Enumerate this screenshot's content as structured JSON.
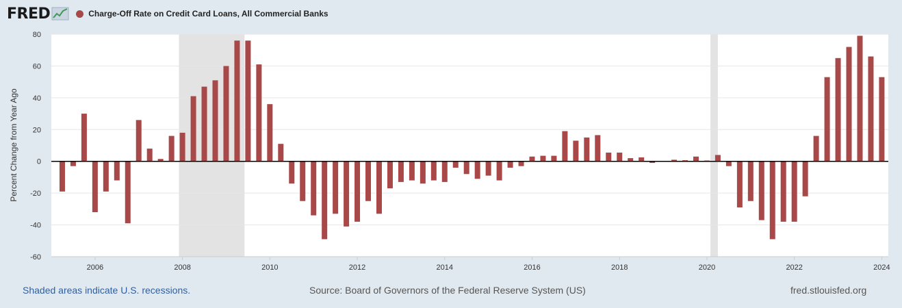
{
  "header": {
    "logo_text": "FRED",
    "logo_icon": "fred-chart-icon",
    "series_title": "Charge-Off Rate on Credit Card Loans, All Commercial Banks"
  },
  "footer": {
    "recession_note": "Shaded areas indicate U.S. recessions.",
    "source": "Source: Board of Governors of the Federal Reserve System (US)",
    "site": "fred.stlouisfed.org"
  },
  "colors": {
    "bar": "#a94848",
    "recession": "#e3e3e3",
    "background": "#e1e9f0",
    "plot": "#ffffff"
  },
  "chart_data": {
    "type": "bar",
    "title": "Charge-Off Rate on Credit Card Loans, All Commercial Banks",
    "xlabel": "",
    "ylabel": "Percent Change from Year Ago",
    "ylim": [
      -60,
      80
    ],
    "yticks": [
      80,
      60,
      40,
      20,
      0,
      -20,
      -40,
      -60
    ],
    "xlim": [
      2005.0,
      2024.15
    ],
    "xticks": [
      "2006",
      "2008",
      "2010",
      "2012",
      "2014",
      "2016",
      "2018",
      "2020",
      "2022",
      "2024"
    ],
    "recessions": [
      [
        2007.92,
        2009.42
      ],
      [
        2020.08,
        2020.25
      ]
    ],
    "grid": true,
    "series": [
      {
        "name": "Charge-Off Rate on Credit Card Loans, All Commercial Banks",
        "x": [
          2005.25,
          2005.5,
          2005.75,
          2006.0,
          2006.25,
          2006.5,
          2006.75,
          2007.0,
          2007.25,
          2007.5,
          2007.75,
          2008.0,
          2008.25,
          2008.5,
          2008.75,
          2009.0,
          2009.25,
          2009.5,
          2009.75,
          2010.0,
          2010.25,
          2010.5,
          2010.75,
          2011.0,
          2011.25,
          2011.5,
          2011.75,
          2012.0,
          2012.25,
          2012.5,
          2012.75,
          2013.0,
          2013.25,
          2013.5,
          2013.75,
          2014.0,
          2014.25,
          2014.5,
          2014.75,
          2015.0,
          2015.25,
          2015.5,
          2015.75,
          2016.0,
          2016.25,
          2016.5,
          2016.75,
          2017.0,
          2017.25,
          2017.5,
          2017.75,
          2018.0,
          2018.25,
          2018.5,
          2018.75,
          2019.0,
          2019.25,
          2019.5,
          2019.75,
          2020.0,
          2020.25,
          2020.5,
          2020.75,
          2021.0,
          2021.25,
          2021.5,
          2021.75,
          2022.0,
          2022.25,
          2022.5,
          2022.75,
          2023.0,
          2023.25,
          2023.5,
          2023.75,
          2024.0
        ],
        "values": [
          -19,
          -3,
          30,
          -32,
          -19,
          -12,
          -39,
          26,
          8,
          1.5,
          16,
          18,
          41,
          47,
          51,
          60,
          76,
          76,
          61,
          36,
          11,
          -14,
          -25,
          -34,
          -49,
          -33,
          -41,
          -38,
          -25,
          -33,
          -17,
          -13,
          -12,
          -14,
          -12,
          -13,
          -4,
          -8,
          -11,
          -9,
          -12,
          -4,
          -3,
          3,
          3.5,
          3.5,
          19,
          13,
          15,
          16.5,
          5.5,
          5.5,
          2,
          2.5,
          -1,
          0,
          1,
          0.7,
          3,
          0.5,
          4,
          -3,
          -29,
          -25,
          -37,
          -49,
          -38,
          -38,
          -22,
          16,
          53,
          65,
          72,
          79,
          66,
          53
        ]
      }
    ]
  }
}
